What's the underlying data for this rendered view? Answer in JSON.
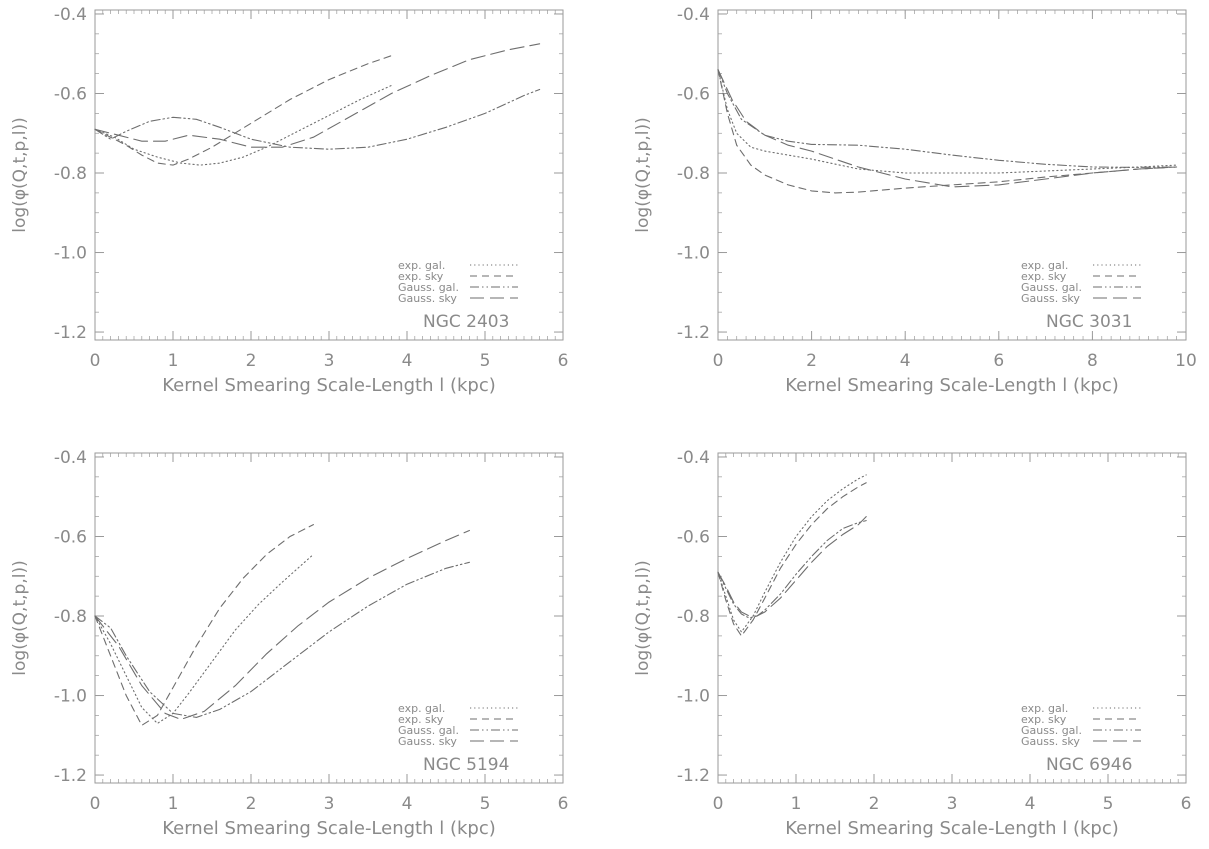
{
  "chart_data": [
    {
      "type": "line",
      "annotation": "NGC 2403",
      "xlabel": "Kernel Smearing Scale-Length l (kpc)",
      "ylabel": "log(φ(Q,t,p,l))",
      "xlim": [
        0,
        6
      ],
      "ylim": [
        -1.22,
        -0.39
      ],
      "xticks": [
        0,
        1,
        2,
        3,
        4,
        5,
        6
      ],
      "yticks": [
        -0.4,
        -0.6,
        -0.8,
        -1.0,
        -1.2
      ],
      "xtick_labels": [
        "0",
        "1",
        "2",
        "3",
        "4",
        "5",
        "6"
      ],
      "ytick_labels": [
        "-0.4",
        "-0.6",
        "-0.8",
        "-1.0",
        "-1.2"
      ],
      "legend_position": "lower-right",
      "series": [
        {
          "name": "exp. gal.",
          "style": "dotted",
          "x": [
            0,
            0.25,
            0.5,
            0.8,
            1.1,
            1.35,
            1.6,
            1.9,
            2.2,
            2.6,
            3.0,
            3.4,
            3.8
          ],
          "y": [
            -0.69,
            -0.71,
            -0.74,
            -0.76,
            -0.775,
            -0.78,
            -0.775,
            -0.76,
            -0.735,
            -0.695,
            -0.655,
            -0.615,
            -0.58
          ]
        },
        {
          "name": "exp. sky",
          "style": "dashed",
          "x": [
            0,
            0.2,
            0.4,
            0.6,
            0.8,
            1.0,
            1.2,
            1.5,
            2.0,
            2.5,
            3.0,
            3.5,
            3.8
          ],
          "y": [
            -0.69,
            -0.71,
            -0.73,
            -0.755,
            -0.775,
            -0.78,
            -0.765,
            -0.735,
            -0.675,
            -0.615,
            -0.565,
            -0.525,
            -0.505
          ]
        },
        {
          "name": "Gauss. gal.",
          "style": "dash-dot",
          "x": [
            0,
            0.2,
            0.4,
            0.7,
            1.0,
            1.3,
            1.6,
            2.0,
            2.5,
            3.0,
            3.5,
            4.0,
            4.5,
            5.0,
            5.5,
            5.7
          ],
          "y": [
            -0.69,
            -0.715,
            -0.695,
            -0.67,
            -0.66,
            -0.665,
            -0.685,
            -0.715,
            -0.735,
            -0.74,
            -0.735,
            -0.715,
            -0.685,
            -0.65,
            -0.605,
            -0.59
          ]
        },
        {
          "name": "Gauss. sky",
          "style": "long-dashed",
          "x": [
            0,
            0.3,
            0.6,
            0.9,
            1.2,
            1.6,
            2.0,
            2.4,
            2.8,
            3.3,
            3.8,
            4.3,
            4.8,
            5.3,
            5.7
          ],
          "y": [
            -0.69,
            -0.705,
            -0.72,
            -0.72,
            -0.705,
            -0.715,
            -0.735,
            -0.735,
            -0.71,
            -0.655,
            -0.6,
            -0.555,
            -0.515,
            -0.49,
            -0.475
          ]
        }
      ]
    },
    {
      "type": "line",
      "annotation": "NGC 3031",
      "xlabel": "Kernel Smearing Scale-Length l (kpc)",
      "ylabel": "log(φ(Q,t,p,l))",
      "xlim": [
        0,
        10
      ],
      "ylim": [
        -1.22,
        -0.39
      ],
      "xticks": [
        0,
        2,
        4,
        6,
        8,
        10
      ],
      "yticks": [
        -0.4,
        -0.6,
        -0.8,
        -1.0,
        -1.2
      ],
      "xtick_labels": [
        "0",
        "2",
        "4",
        "6",
        "8",
        "10"
      ],
      "ytick_labels": [
        "-0.4",
        "-0.6",
        "-0.8",
        "-1.0",
        "-1.2"
      ],
      "legend_position": "lower-right",
      "series": [
        {
          "name": "exp. gal.",
          "style": "dotted",
          "x": [
            0,
            0.2,
            0.4,
            0.7,
            1.0,
            1.5,
            2.0,
            3.0,
            4.0,
            5.0,
            6.0,
            7.0,
            8.0,
            9.0,
            9.8
          ],
          "y": [
            -0.54,
            -0.64,
            -0.7,
            -0.735,
            -0.745,
            -0.755,
            -0.765,
            -0.79,
            -0.8,
            -0.8,
            -0.8,
            -0.795,
            -0.79,
            -0.785,
            -0.78
          ]
        },
        {
          "name": "exp. sky",
          "style": "dashed",
          "x": [
            0,
            0.2,
            0.4,
            0.7,
            1.0,
            1.5,
            2.0,
            2.5,
            3.0,
            4.0,
            5.0,
            6.0,
            7.0,
            8.0,
            9.0,
            9.8
          ],
          "y": [
            -0.54,
            -0.65,
            -0.73,
            -0.78,
            -0.805,
            -0.83,
            -0.845,
            -0.85,
            -0.848,
            -0.838,
            -0.83,
            -0.822,
            -0.81,
            -0.8,
            -0.79,
            -0.785
          ]
        },
        {
          "name": "Gauss. gal.",
          "style": "dash-dot",
          "x": [
            0,
            0.2,
            0.5,
            1.0,
            1.5,
            2.0,
            3.0,
            4.0,
            5.0,
            6.0,
            7.0,
            8.0,
            9.0,
            9.8
          ],
          "y": [
            -0.54,
            -0.6,
            -0.665,
            -0.705,
            -0.72,
            -0.728,
            -0.73,
            -0.74,
            -0.755,
            -0.768,
            -0.778,
            -0.785,
            -0.786,
            -0.785
          ]
        },
        {
          "name": "Gauss. sky",
          "style": "long-dashed",
          "x": [
            0,
            0.3,
            0.6,
            1.0,
            1.5,
            2.0,
            2.5,
            3.0,
            4.0,
            5.0,
            6.0,
            7.0,
            8.0,
            9.0,
            9.8
          ],
          "y": [
            -0.54,
            -0.615,
            -0.67,
            -0.705,
            -0.73,
            -0.745,
            -0.765,
            -0.785,
            -0.815,
            -0.835,
            -0.83,
            -0.815,
            -0.8,
            -0.79,
            -0.785
          ]
        }
      ]
    },
    {
      "type": "line",
      "annotation": "NGC 5194",
      "xlabel": "Kernel Smearing Scale-Length l (kpc)",
      "ylabel": "log(φ(Q,t,p,l))",
      "xlim": [
        0,
        6
      ],
      "ylim": [
        -1.22,
        -0.39
      ],
      "xticks": [
        0,
        1,
        2,
        3,
        4,
        5,
        6
      ],
      "yticks": [
        -0.4,
        -0.6,
        -0.8,
        -1.0,
        -1.2
      ],
      "xtick_labels": [
        "0",
        "1",
        "2",
        "3",
        "4",
        "5",
        "6"
      ],
      "ytick_labels": [
        "-0.4",
        "-0.6",
        "-0.8",
        "-1.0",
        "-1.2"
      ],
      "legend_position": "lower-right",
      "series": [
        {
          "name": "exp. gal.",
          "style": "dotted",
          "x": [
            0,
            0.2,
            0.4,
            0.6,
            0.8,
            1.0,
            1.2,
            1.5,
            1.8,
            2.1,
            2.4,
            2.6,
            2.8
          ],
          "y": [
            -0.8,
            -0.87,
            -0.95,
            -1.03,
            -1.07,
            -1.045,
            -0.995,
            -0.915,
            -0.835,
            -0.77,
            -0.715,
            -0.68,
            -0.645
          ]
        },
        {
          "name": "exp. sky",
          "style": "dashed",
          "x": [
            0,
            0.2,
            0.4,
            0.6,
            0.8,
            1.0,
            1.3,
            1.6,
            1.9,
            2.2,
            2.5,
            2.8
          ],
          "y": [
            -0.8,
            -0.9,
            -1.0,
            -1.075,
            -1.05,
            -0.98,
            -0.875,
            -0.78,
            -0.705,
            -0.645,
            -0.6,
            -0.57
          ]
        },
        {
          "name": "Gauss. gal.",
          "style": "dash-dot",
          "x": [
            0,
            0.2,
            0.4,
            0.7,
            1.0,
            1.3,
            1.6,
            2.0,
            2.5,
            3.0,
            3.5,
            4.0,
            4.5,
            4.8
          ],
          "y": [
            -0.8,
            -0.83,
            -0.9,
            -0.99,
            -1.045,
            -1.055,
            -1.035,
            -0.99,
            -0.915,
            -0.84,
            -0.775,
            -0.72,
            -0.68,
            -0.665
          ]
        },
        {
          "name": "Gauss. sky",
          "style": "long-dashed",
          "x": [
            0,
            0.3,
            0.6,
            0.9,
            1.1,
            1.4,
            1.8,
            2.2,
            2.6,
            3.0,
            3.5,
            4.0,
            4.5,
            4.8
          ],
          "y": [
            -0.8,
            -0.875,
            -0.975,
            -1.045,
            -1.06,
            -1.04,
            -0.975,
            -0.895,
            -0.825,
            -0.765,
            -0.705,
            -0.655,
            -0.61,
            -0.585
          ]
        }
      ]
    },
    {
      "type": "line",
      "annotation": "NGC 6946",
      "xlabel": "Kernel Smearing Scale-Length l (kpc)",
      "ylabel": "log(φ(Q,t,p,l))",
      "xlim": [
        0,
        6
      ],
      "ylim": [
        -1.22,
        -0.39
      ],
      "xticks": [
        0,
        1,
        2,
        3,
        4,
        5,
        6
      ],
      "yticks": [
        -0.4,
        -0.6,
        -0.8,
        -1.0,
        -1.2
      ],
      "xtick_labels": [
        "0",
        "1",
        "2",
        "3",
        "4",
        "5",
        "6"
      ],
      "ytick_labels": [
        "-0.4",
        "-0.6",
        "-0.8",
        "-1.0",
        "-1.2"
      ],
      "legend_position": "lower-right",
      "series": [
        {
          "name": "exp. gal.",
          "style": "dotted",
          "x": [
            0,
            0.1,
            0.2,
            0.3,
            0.45,
            0.6,
            0.8,
            1.0,
            1.2,
            1.4,
            1.6,
            1.8,
            1.9
          ],
          "y": [
            -0.69,
            -0.75,
            -0.81,
            -0.84,
            -0.8,
            -0.74,
            -0.665,
            -0.6,
            -0.55,
            -0.51,
            -0.48,
            -0.455,
            -0.445
          ]
        },
        {
          "name": "exp. sky",
          "style": "dashed",
          "x": [
            0,
            0.1,
            0.2,
            0.3,
            0.45,
            0.6,
            0.8,
            1.0,
            1.2,
            1.4,
            1.6,
            1.8,
            1.9
          ],
          "y": [
            -0.69,
            -0.76,
            -0.82,
            -0.85,
            -0.81,
            -0.755,
            -0.68,
            -0.62,
            -0.57,
            -0.53,
            -0.5,
            -0.475,
            -0.465
          ]
        },
        {
          "name": "Gauss. gal.",
          "style": "dash-dot",
          "x": [
            0,
            0.1,
            0.2,
            0.3,
            0.4,
            0.5,
            0.6,
            0.8,
            1.0,
            1.2,
            1.4,
            1.6,
            1.8,
            1.9
          ],
          "y": [
            -0.69,
            -0.73,
            -0.77,
            -0.795,
            -0.805,
            -0.8,
            -0.785,
            -0.745,
            -0.695,
            -0.65,
            -0.61,
            -0.58,
            -0.565,
            -0.56
          ]
        },
        {
          "name": "Gauss. sky",
          "style": "long-dashed",
          "x": [
            0,
            0.1,
            0.2,
            0.3,
            0.4,
            0.5,
            0.6,
            0.8,
            1.0,
            1.2,
            1.4,
            1.6,
            1.8,
            1.9
          ],
          "y": [
            -0.69,
            -0.725,
            -0.765,
            -0.79,
            -0.8,
            -0.8,
            -0.79,
            -0.755,
            -0.71,
            -0.665,
            -0.625,
            -0.595,
            -0.57,
            -0.55
          ]
        }
      ]
    }
  ]
}
